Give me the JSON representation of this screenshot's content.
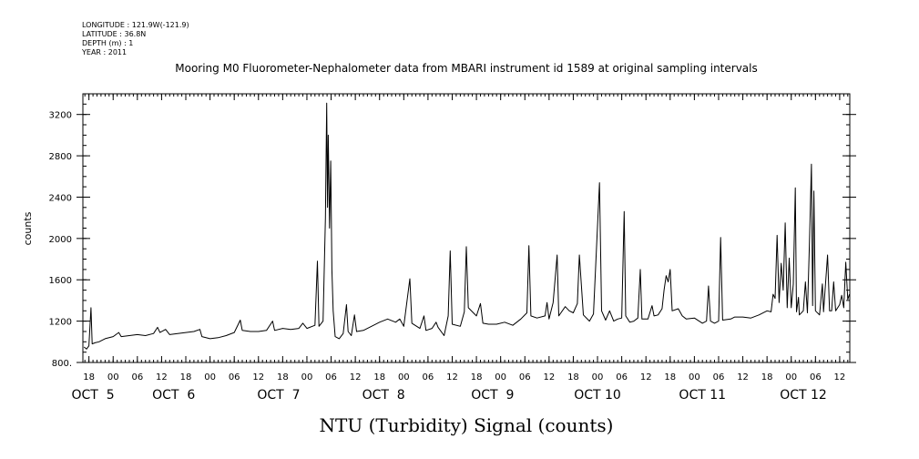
{
  "header": {
    "meta_lines": [
      "LONGITUDE : 121.9W(-121.9)",
      "LATITUDE : 36.8N",
      "DEPTH (m) : 1",
      "YEAR : 2011"
    ]
  },
  "chart_data": {
    "type": "line",
    "title": "Mooring M0 Fluorometer-Nephalometer data from MBARI instrument id 1589 at original sampling intervals",
    "xlabel": "NTU (Turbidity) Signal (counts)",
    "ylabel": "counts",
    "ylim": [
      800,
      3400
    ],
    "xlim": [
      16.5,
      206.5
    ],
    "x_unit": "hours after 2011-10-05 00:00",
    "y_ticks": [
      800,
      1200,
      1600,
      2000,
      2400,
      2800,
      3200
    ],
    "y_tick_labels": [
      "800.",
      "1200",
      "1600",
      "2000",
      "2400",
      "2800",
      "3200"
    ],
    "x_ticks": [
      {
        "x": 18,
        "label": "18"
      },
      {
        "x": 24,
        "label": "00"
      },
      {
        "x": 30,
        "label": "06"
      },
      {
        "x": 36,
        "label": "12"
      },
      {
        "x": 42,
        "label": "18"
      },
      {
        "x": 48,
        "label": "00"
      },
      {
        "x": 54,
        "label": "06"
      },
      {
        "x": 60,
        "label": "12"
      },
      {
        "x": 66,
        "label": "18"
      },
      {
        "x": 72,
        "label": "00"
      },
      {
        "x": 78,
        "label": "06"
      },
      {
        "x": 84,
        "label": "12"
      },
      {
        "x": 90,
        "label": "18"
      },
      {
        "x": 96,
        "label": "00"
      },
      {
        "x": 102,
        "label": "06"
      },
      {
        "x": 108,
        "label": "12"
      },
      {
        "x": 114,
        "label": "18"
      },
      {
        "x": 120,
        "label": "00"
      },
      {
        "x": 126,
        "label": "06"
      },
      {
        "x": 132,
        "label": "12"
      },
      {
        "x": 138,
        "label": "18"
      },
      {
        "x": 144,
        "label": "00"
      },
      {
        "x": 150,
        "label": "06"
      },
      {
        "x": 156,
        "label": "12"
      },
      {
        "x": 162,
        "label": "18"
      },
      {
        "x": 168,
        "label": "00"
      },
      {
        "x": 174,
        "label": "06"
      },
      {
        "x": 180,
        "label": "12"
      },
      {
        "x": 186,
        "label": "18"
      },
      {
        "x": 192,
        "label": "00"
      },
      {
        "x": 198,
        "label": "06"
      },
      {
        "x": 204,
        "label": "12"
      }
    ],
    "date_labels": [
      {
        "x": 19,
        "label": "OCT  5"
      },
      {
        "x": 39,
        "label": "OCT  6"
      },
      {
        "x": 65,
        "label": "OCT  7"
      },
      {
        "x": 91,
        "label": "OCT  8"
      },
      {
        "x": 118,
        "label": "OCT  9"
      },
      {
        "x": 144,
        "label": "OCT 10"
      },
      {
        "x": 170,
        "label": "OCT 11"
      },
      {
        "x": 195,
        "label": "OCT 12"
      }
    ],
    "grid": false,
    "series": [
      {
        "points": [
          [
            16.8,
            950
          ],
          [
            17.4,
            930
          ],
          [
            18.0,
            960
          ],
          [
            18.5,
            1330
          ],
          [
            18.8,
            980
          ],
          [
            19.5,
            990
          ],
          [
            20.5,
            1000
          ],
          [
            22,
            1030
          ],
          [
            24,
            1050
          ],
          [
            25.4,
            1090
          ],
          [
            26,
            1050
          ],
          [
            28,
            1060
          ],
          [
            30,
            1070
          ],
          [
            32,
            1060
          ],
          [
            34,
            1080
          ],
          [
            35,
            1140
          ],
          [
            35.6,
            1090
          ],
          [
            37,
            1120
          ],
          [
            38,
            1070
          ],
          [
            40,
            1080
          ],
          [
            42,
            1090
          ],
          [
            44,
            1100
          ],
          [
            45.5,
            1120
          ],
          [
            46,
            1050
          ],
          [
            48,
            1030
          ],
          [
            50,
            1040
          ],
          [
            52,
            1060
          ],
          [
            54,
            1090
          ],
          [
            55.5,
            1210
          ],
          [
            56,
            1110
          ],
          [
            58,
            1100
          ],
          [
            60,
            1100
          ],
          [
            62,
            1110
          ],
          [
            63.5,
            1200
          ],
          [
            64,
            1110
          ],
          [
            66,
            1130
          ],
          [
            68,
            1120
          ],
          [
            70,
            1130
          ],
          [
            71,
            1180
          ],
          [
            72,
            1130
          ],
          [
            74,
            1160
          ],
          [
            74.6,
            1780
          ],
          [
            75,
            1150
          ],
          [
            76,
            1200
          ],
          [
            76.6,
            2200
          ],
          [
            76.9,
            3310
          ],
          [
            77.1,
            2300
          ],
          [
            77.3,
            3000
          ],
          [
            77.6,
            2100
          ],
          [
            77.9,
            2750
          ],
          [
            78.2,
            1700
          ],
          [
            78.5,
            1300
          ],
          [
            79,
            1050
          ],
          [
            80,
            1030
          ],
          [
            81,
            1080
          ],
          [
            81.8,
            1360
          ],
          [
            82.2,
            1100
          ],
          [
            83,
            1060
          ],
          [
            83.8,
            1260
          ],
          [
            84.3,
            1100
          ],
          [
            86,
            1110
          ],
          [
            88,
            1150
          ],
          [
            90,
            1190
          ],
          [
            92,
            1220
          ],
          [
            94,
            1190
          ],
          [
            95,
            1220
          ],
          [
            96,
            1150
          ],
          [
            97.5,
            1610
          ],
          [
            98,
            1180
          ],
          [
            100,
            1130
          ],
          [
            101,
            1250
          ],
          [
            101.5,
            1110
          ],
          [
            103,
            1130
          ],
          [
            104,
            1190
          ],
          [
            104.5,
            1140
          ],
          [
            106,
            1060
          ],
          [
            107,
            1250
          ],
          [
            107.5,
            1880
          ],
          [
            108,
            1170
          ],
          [
            110,
            1150
          ],
          [
            111,
            1290
          ],
          [
            111.5,
            1920
          ],
          [
            112,
            1330
          ],
          [
            113,
            1290
          ],
          [
            114,
            1250
          ],
          [
            115,
            1370
          ],
          [
            115.6,
            1180
          ],
          [
            117,
            1170
          ],
          [
            119,
            1170
          ],
          [
            121,
            1190
          ],
          [
            123,
            1160
          ],
          [
            125,
            1220
          ],
          [
            126.5,
            1280
          ],
          [
            127,
            1930
          ],
          [
            127.5,
            1250
          ],
          [
            129,
            1230
          ],
          [
            131,
            1250
          ],
          [
            131.5,
            1380
          ],
          [
            132,
            1220
          ],
          [
            133,
            1380
          ],
          [
            134,
            1840
          ],
          [
            134.4,
            1250
          ],
          [
            136,
            1340
          ],
          [
            137,
            1300
          ],
          [
            138,
            1280
          ],
          [
            139,
            1370
          ],
          [
            139.5,
            1840
          ],
          [
            140,
            1550
          ],
          [
            140.5,
            1260
          ],
          [
            142,
            1200
          ],
          [
            143,
            1270
          ],
          [
            144.5,
            2540
          ],
          [
            145,
            1300
          ],
          [
            146,
            1210
          ],
          [
            147,
            1300
          ],
          [
            148,
            1200
          ],
          [
            149,
            1220
          ],
          [
            150,
            1230
          ],
          [
            150.6,
            2260
          ],
          [
            151,
            1250
          ],
          [
            152,
            1190
          ],
          [
            153,
            1200
          ],
          [
            154,
            1230
          ],
          [
            154.6,
            1700
          ],
          [
            155,
            1220
          ],
          [
            156.5,
            1220
          ],
          [
            157.5,
            1350
          ],
          [
            158,
            1250
          ],
          [
            159,
            1260
          ],
          [
            160,
            1320
          ],
          [
            160.5,
            1500
          ],
          [
            161,
            1640
          ],
          [
            161.5,
            1580
          ],
          [
            162,
            1700
          ],
          [
            162.5,
            1300
          ],
          [
            164,
            1320
          ],
          [
            165,
            1250
          ],
          [
            166,
            1220
          ],
          [
            168,
            1230
          ],
          [
            170,
            1180
          ],
          [
            171,
            1200
          ],
          [
            171.5,
            1540
          ],
          [
            172,
            1200
          ],
          [
            173,
            1180
          ],
          [
            174,
            1200
          ],
          [
            174.5,
            2010
          ],
          [
            175,
            1210
          ],
          [
            177,
            1220
          ],
          [
            178,
            1240
          ],
          [
            180,
            1240
          ],
          [
            182,
            1230
          ],
          [
            184,
            1260
          ],
          [
            186,
            1300
          ],
          [
            187,
            1290
          ],
          [
            187.5,
            1460
          ],
          [
            188,
            1420
          ],
          [
            188.5,
            2030
          ],
          [
            189,
            1380
          ],
          [
            189.5,
            1760
          ],
          [
            190,
            1500
          ],
          [
            190.5,
            2150
          ],
          [
            191,
            1330
          ],
          [
            191.5,
            1810
          ],
          [
            192,
            1330
          ],
          [
            192.5,
            1560
          ],
          [
            193,
            2490
          ],
          [
            193.3,
            1290
          ],
          [
            193.8,
            1430
          ],
          [
            194,
            1260
          ],
          [
            195,
            1300
          ],
          [
            195.5,
            1580
          ],
          [
            196,
            1280
          ],
          [
            196.5,
            1950
          ],
          [
            197,
            2720
          ],
          [
            197.3,
            1350
          ],
          [
            197.6,
            2460
          ],
          [
            198,
            1300
          ],
          [
            199,
            1260
          ],
          [
            199.7,
            1560
          ],
          [
            200,
            1290
          ],
          [
            201,
            1840
          ],
          [
            201.5,
            1300
          ],
          [
            202,
            1300
          ],
          [
            202.5,
            1580
          ],
          [
            203,
            1300
          ],
          [
            204,
            1360
          ],
          [
            204.5,
            1450
          ],
          [
            205,
            1330
          ],
          [
            205.5,
            1770
          ],
          [
            206,
            1410
          ],
          [
            206.4,
            1460
          ]
        ]
      }
    ]
  }
}
